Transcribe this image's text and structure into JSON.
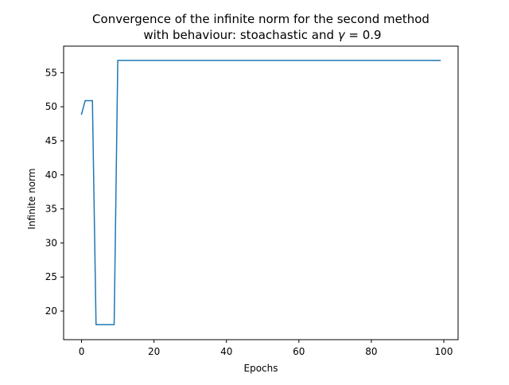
{
  "chart_data": {
    "type": "line",
    "title_line1": "Convergence of the infinite norm for the second method",
    "title_line2_prefix": "with behaviour: stoachastic and ",
    "title_line2_symbol": "γ",
    "title_line2_suffix": " = 0.9",
    "xlabel": "Epochs",
    "ylabel": "Infinite norm",
    "xlim": [
      -4.95,
      103.95
    ],
    "ylim": [
      15.8,
      58.9
    ],
    "xticks": [
      0,
      20,
      40,
      60,
      80,
      100
    ],
    "yticks": [
      20,
      25,
      30,
      35,
      40,
      45,
      50,
      55
    ],
    "grid": false,
    "legend": "none",
    "line_color": "#1f77b4",
    "series": [
      {
        "x": [
          0,
          1,
          2,
          3,
          4,
          5,
          6,
          7,
          8,
          9,
          10,
          20,
          30,
          40,
          50,
          60,
          70,
          80,
          90,
          99
        ],
        "y": [
          48.9,
          50.9,
          50.9,
          50.9,
          18.0,
          18.0,
          18.0,
          18.0,
          18.0,
          18.0,
          56.8,
          56.8,
          56.8,
          56.8,
          56.8,
          56.8,
          56.8,
          56.8,
          56.8,
          56.8
        ]
      }
    ]
  }
}
